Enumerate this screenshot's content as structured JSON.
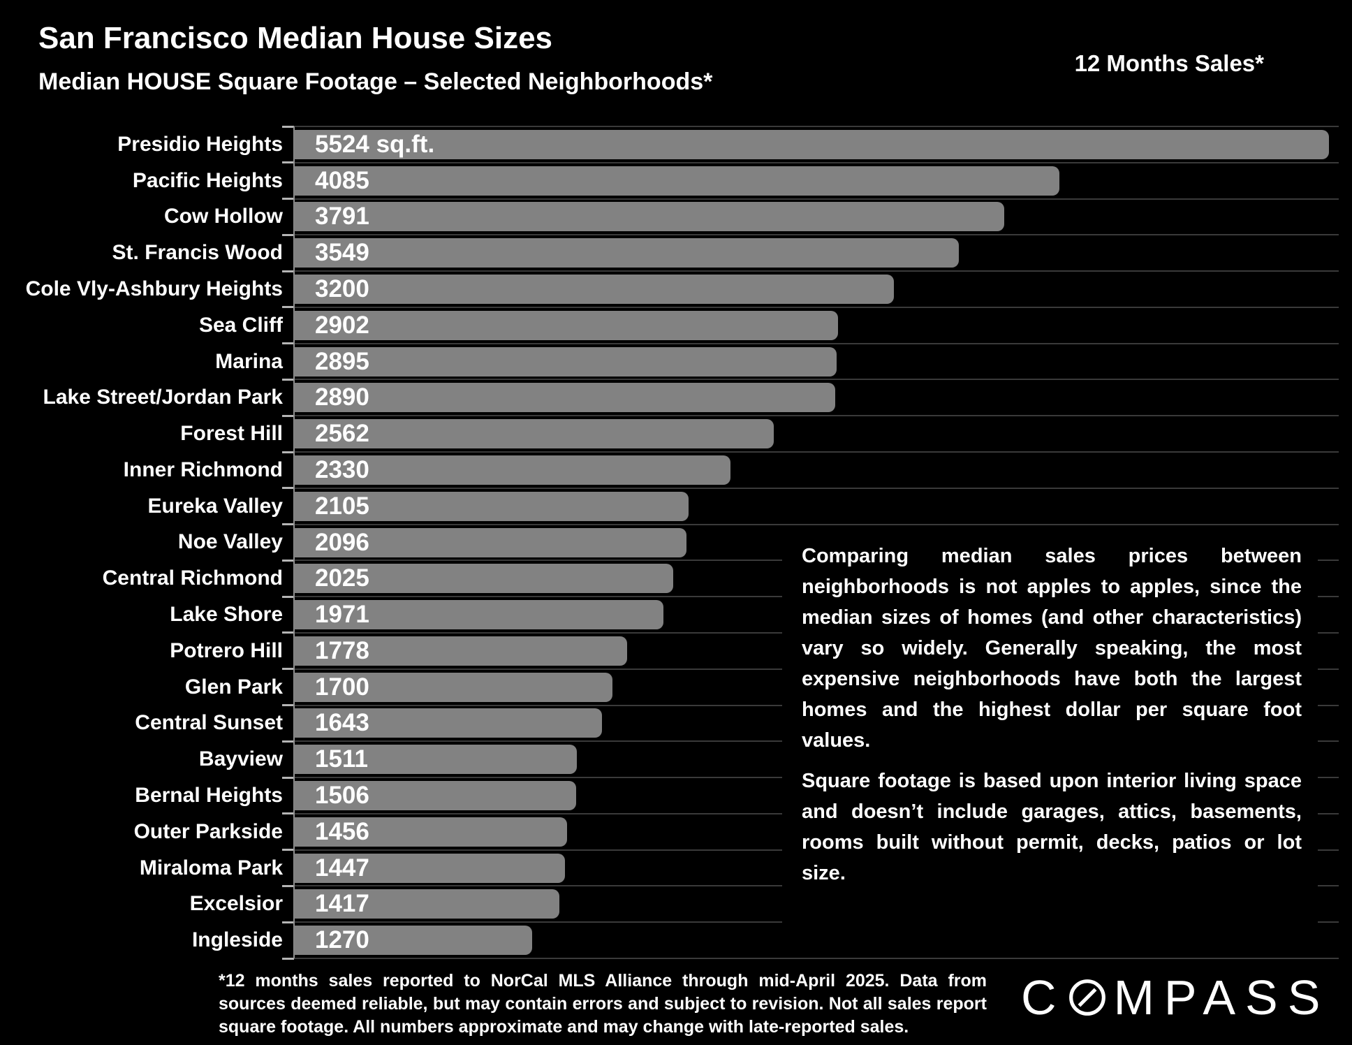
{
  "page": {
    "background": "#000000",
    "text_color": "#ffffff"
  },
  "header": {
    "title": "San Francisco Median House Sizes",
    "subtitle": "Median HOUSE Square Footage – Selected Neighborhoods*",
    "sales_period": "12 Months Sales*"
  },
  "chart_data": {
    "type": "bar",
    "orientation": "horizontal",
    "title": "Median HOUSE Square Footage – Selected Neighborhoods*",
    "unit": "sq.ft.",
    "xlim": [
      0,
      5524
    ],
    "grid": true,
    "legend": "none",
    "categories": [
      "Presidio Heights",
      "Pacific Heights",
      "Cow Hollow",
      "St. Francis Wood",
      "Cole Vly-Ashbury Heights",
      "Sea Cliff",
      "Marina",
      "Lake Street/Jordan Park",
      "Forest Hill",
      "Inner Richmond",
      "Eureka Valley",
      "Noe Valley",
      "Central Richmond",
      "Lake Shore",
      "Potrero Hill",
      "Glen Park",
      "Central Sunset",
      "Bayview",
      "Bernal Heights",
      "Outer Parkside",
      "Miraloma Park",
      "Excelsior",
      "Ingleside"
    ],
    "values": [
      5524,
      4085,
      3791,
      3549,
      3200,
      2902,
      2895,
      2890,
      2562,
      2330,
      2105,
      2096,
      2025,
      1971,
      1778,
      1700,
      1643,
      1511,
      1506,
      1456,
      1447,
      1417,
      1270
    ],
    "value_labels": [
      "5524 sq.ft.",
      "4085",
      "3791",
      "3549",
      "3200",
      "2902",
      "2895",
      "2890",
      "2562",
      "2330",
      "2105",
      "2096",
      "2025",
      "1971",
      "1778",
      "1700",
      "1643",
      "1511",
      "1506",
      "1456",
      "1447",
      "1417",
      "1270"
    ],
    "bar_color": "#828282",
    "grid_line_color": "#3a3a3a",
    "tick_color": "#b5b5b5"
  },
  "annotations": {
    "para1": "Comparing median sales prices between neighborhoods is not apples to apples, since the median sizes of homes (and other characteristics) vary so widely. Generally speaking, the most expensive neighborhoods have both the largest homes and the highest dollar per square foot values.",
    "para2": "Square footage is based upon interior living space and doesn’t include garages, attics, basements, rooms built without permit, decks, patios or lot size."
  },
  "footnote": "*12 months sales reported to NorCal MLS Alliance through mid-April 2025. Data from sources deemed reliable, but may contain errors and subject to revision. Not all sales report square footage. All numbers approximate and may change with late-reported sales.",
  "logo": {
    "prefix": "C",
    "suffix": "MPASS"
  }
}
